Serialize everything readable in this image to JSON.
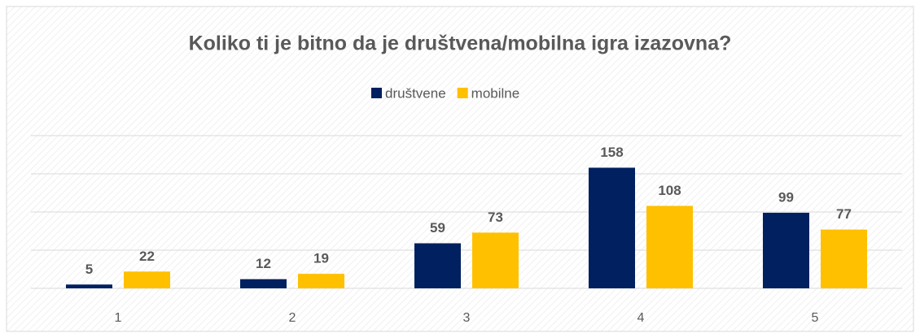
{
  "chart_data": {
    "type": "bar",
    "title": "Koliko ti je bitno da je društvena/mobilna igra izazovna?",
    "categories": [
      "1",
      "2",
      "3",
      "4",
      "5"
    ],
    "series": [
      {
        "name": "društvene",
        "color": "#002060",
        "values": [
          5,
          12,
          59,
          158,
          99
        ]
      },
      {
        "name": "mobilne",
        "color": "#ffc000",
        "values": [
          22,
          19,
          73,
          108,
          77
        ]
      }
    ],
    "ylim": [
      0,
      200
    ],
    "yticks": [
      0,
      50,
      100,
      150,
      200
    ],
    "grid": true,
    "legend": "top"
  }
}
